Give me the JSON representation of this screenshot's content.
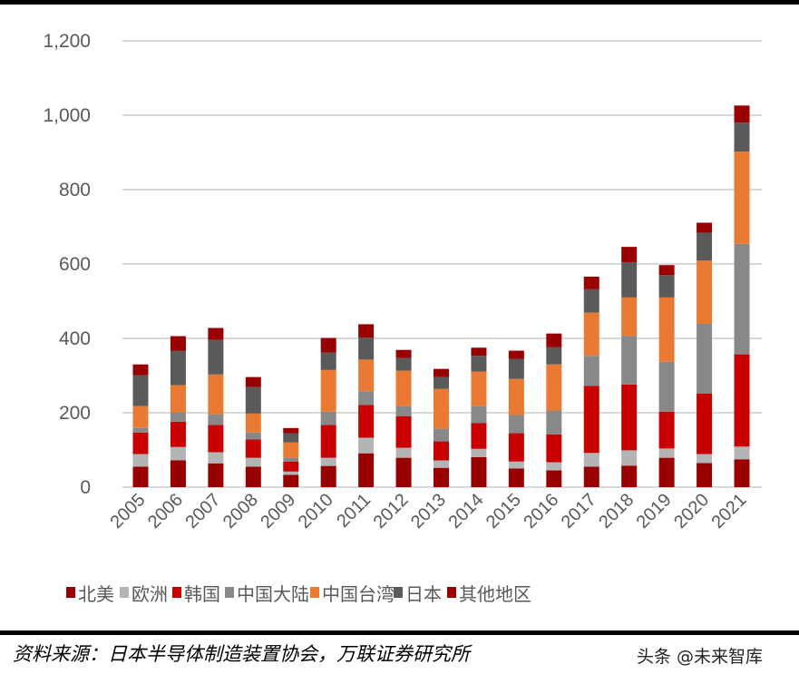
{
  "chart_data": {
    "type": "bar",
    "stacked": true,
    "categories": [
      "2005",
      "2006",
      "2007",
      "2008",
      "2009",
      "2010",
      "2011",
      "2012",
      "2013",
      "2014",
      "2015",
      "2016",
      "2017",
      "2018",
      "2019",
      "2020",
      "2021"
    ],
    "series": [
      {
        "name": "北美",
        "color": "#990000",
        "values": [
          55,
          72,
          64,
          55,
          33,
          57,
          91,
          79,
          52,
          81,
          50,
          45,
          55,
          58,
          79,
          65,
          75
        ]
      },
      {
        "name": "欧洲",
        "color": "#b4b4b4",
        "values": [
          34,
          36,
          30,
          24,
          9,
          22,
          42,
          27,
          20,
          22,
          19,
          22,
          37,
          41,
          25,
          24,
          34
        ]
      },
      {
        "name": "韩国",
        "color": "#c80000",
        "values": [
          58,
          68,
          73,
          49,
          27,
          88,
          88,
          85,
          51,
          69,
          76,
          75,
          180,
          177,
          99,
          163,
          248
        ]
      },
      {
        "name": "中国大陆",
        "color": "#888888",
        "values": [
          12,
          25,
          29,
          19,
          10,
          36,
          37,
          27,
          34,
          46,
          49,
          64,
          81,
          131,
          134,
          187,
          297
        ]
      },
      {
        "name": "中国台湾",
        "color": "#ea7a33",
        "values": [
          59,
          73,
          107,
          51,
          41,
          112,
          85,
          95,
          107,
          93,
          97,
          124,
          116,
          103,
          173,
          170,
          248
        ]
      },
      {
        "name": "日本",
        "color": "#5a5a5a",
        "values": [
          83,
          93,
          93,
          71,
          25,
          47,
          59,
          34,
          32,
          42,
          54,
          46,
          63,
          95,
          60,
          75,
          78
        ]
      },
      {
        "name": "其他地区",
        "color": "#990000",
        "values": [
          29,
          39,
          32,
          27,
          14,
          39,
          36,
          22,
          22,
          22,
          22,
          37,
          34,
          41,
          27,
          27,
          46
        ]
      }
    ],
    "yticks": [
      "0",
      "200",
      "400",
      "600",
      "800",
      "1,000",
      "1,200"
    ],
    "ylim": [
      0,
      1200
    ],
    "grid": true,
    "legend_position": "bottom",
    "title": "",
    "xlabel": "",
    "ylabel": ""
  },
  "footer": {
    "source": "资料来源：日本半导体制造装置协会，万联证券研究所",
    "watermark": "头条 @未来智库"
  }
}
